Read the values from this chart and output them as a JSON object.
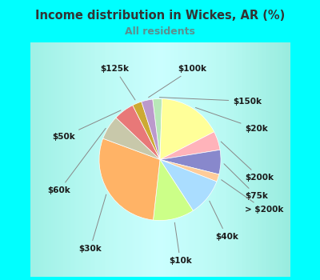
{
  "title": "Income distribution in Wickes, AR (%)",
  "subtitle": "All residents",
  "title_color": "#333333",
  "subtitle_color": "#5a9090",
  "background_color": "#00ffff",
  "chart_bg_start": "#e0f5ee",
  "chart_bg_end": "#ffffff",
  "labels": [
    "$150k",
    "$20k",
    "$200k",
    "$75k",
    "> $200k",
    "$40k",
    "$10k",
    "$30k",
    "$60k",
    "$50k",
    "$125k",
    "$100k"
  ],
  "values": [
    2.5,
    17.0,
    5.0,
    6.5,
    2.0,
    10.0,
    11.0,
    29.0,
    6.5,
    5.5,
    2.5,
    3.0
  ],
  "colors": [
    "#b8e8b8",
    "#ffff99",
    "#ffb3ba",
    "#8888cc",
    "#ffcc99",
    "#aaddff",
    "#ccff88",
    "#ffb366",
    "#c8c8aa",
    "#e87878",
    "#ccaa33",
    "#bb99cc"
  ],
  "figsize": [
    4.0,
    3.5
  ],
  "dpi": 100,
  "startangle": 97
}
